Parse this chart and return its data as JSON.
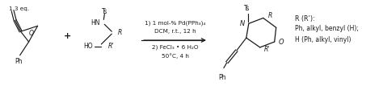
{
  "bg_color": "#ffffff",
  "text_color": "#1a1a1a",
  "fig_width": 4.74,
  "fig_height": 1.07,
  "dpi": 100,
  "label_13eq": "1.3 eq.",
  "plus_sign": "+",
  "reagent1_line1": "1) 1 mol-% Pd(PPh₃)₄",
  "reagent1_line2": "DCM, r.t., 12 h",
  "reagent2_line1": "2) FeCl₃ • 6 H₂O",
  "reagent2_line2": "50°C, 4 h",
  "rgroup_title": "R (R’):",
  "rgroup_line1": "Ph, alkyl, benzyl (H);",
  "rgroup_line2": "H (Ph, alkyl, vinyl)",
  "font_size_small": 5.5,
  "font_size_label": 5.8,
  "font_size_atom": 6.0
}
